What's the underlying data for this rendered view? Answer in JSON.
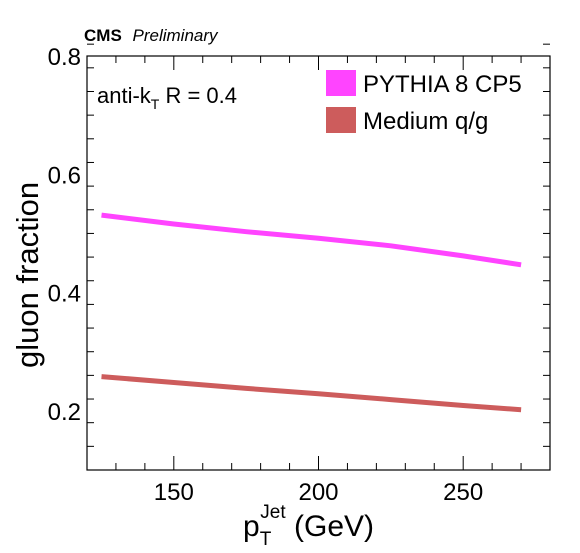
{
  "header": {
    "experiment": "CMS",
    "status": "Preliminary"
  },
  "annotation": {
    "prefix": "anti-k",
    "subscript": "T",
    "suffix": " R = 0.4"
  },
  "chart_data": {
    "type": "line",
    "title": "",
    "xlabel": {
      "main": "p",
      "subscript": "T",
      "superscript": "Jet",
      "unit": " (GeV)"
    },
    "ylabel": "gluon fraction",
    "xlim": [
      120,
      280
    ],
    "ylim": [
      0.1,
      0.8
    ],
    "x_ticks": [
      150,
      200,
      250
    ],
    "y_ticks": [
      0.2,
      0.4,
      0.6,
      0.8
    ],
    "x_tick_labels": [
      "150",
      "200",
      "250"
    ],
    "y_tick_labels": [
      "0.2",
      "0.4",
      "0.6",
      "0.8"
    ],
    "legend_position": "top-right",
    "grid": false,
    "series": [
      {
        "name": "PYTHIA 8 CP5",
        "color": "#ff44ff",
        "x": [
          125,
          150,
          175,
          200,
          225,
          250,
          270
        ],
        "y": [
          0.531,
          0.516,
          0.503,
          0.492,
          0.479,
          0.462,
          0.447
        ]
      },
      {
        "name": "Medium q/g",
        "color": "#cd5c5c",
        "x": [
          125,
          150,
          175,
          200,
          225,
          250,
          270
        ],
        "y": [
          0.258,
          0.248,
          0.238,
          0.229,
          0.219,
          0.209,
          0.202
        ]
      }
    ]
  }
}
